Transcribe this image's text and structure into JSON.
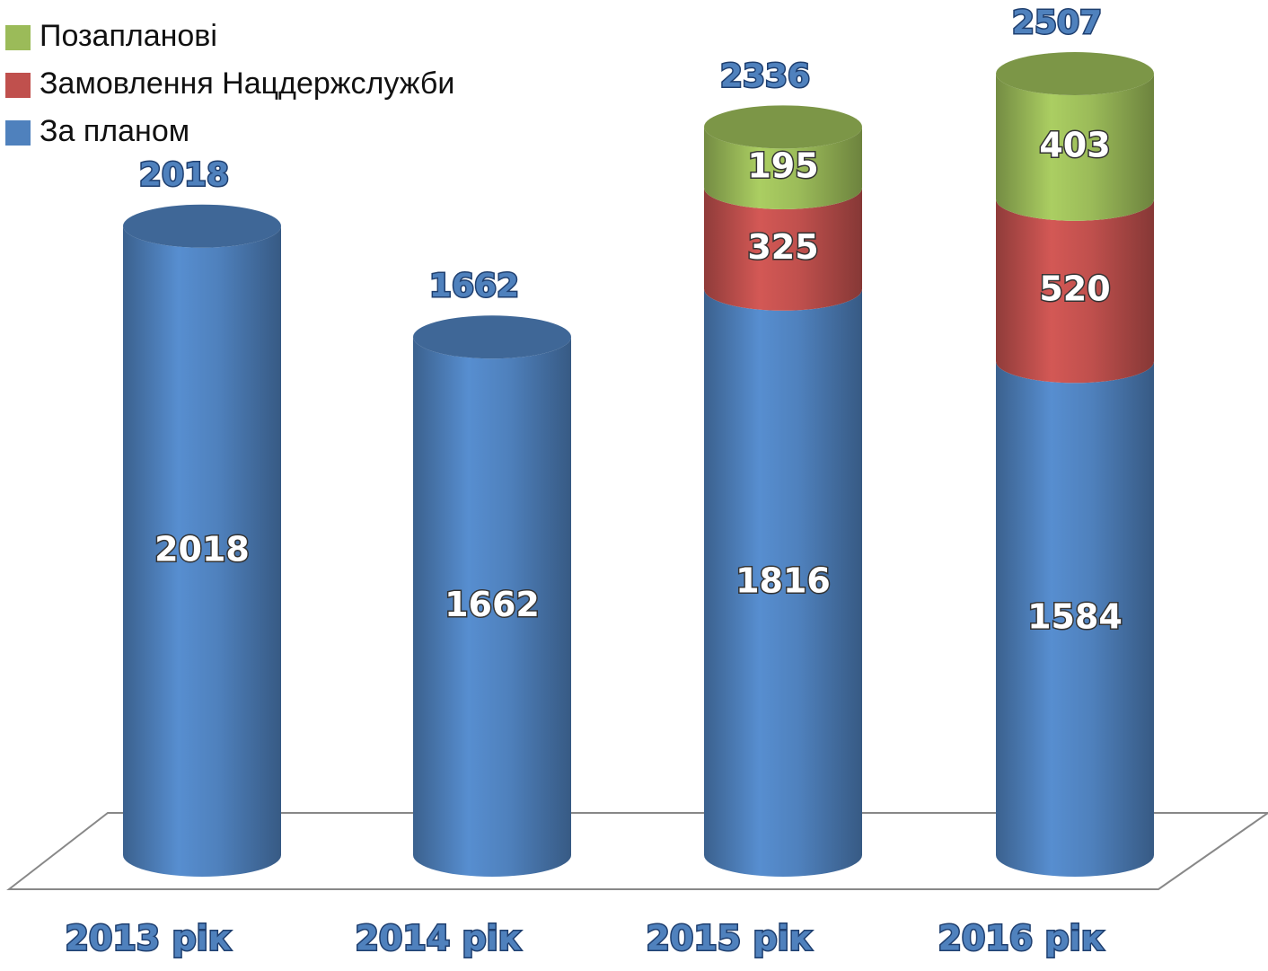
{
  "chart_data": {
    "type": "stacked-cylinder",
    "categories": [
      "2013 рік",
      "2014 рік",
      "2015 рік",
      "2016 рік"
    ],
    "series": [
      {
        "name": "За планом",
        "color": "#4f81bd",
        "values": [
          2018,
          1662,
          1816,
          1584
        ]
      },
      {
        "name": "Замовлення Нацдержслужби",
        "color": "#c0504d",
        "values": [
          null,
          null,
          325,
          520
        ]
      },
      {
        "name": "Позапланові",
        "color": "#9bbb59",
        "values": [
          null,
          null,
          195,
          403
        ]
      }
    ],
    "totals": [
      2018,
      1662,
      2336,
      2507
    ],
    "legend": "top-left"
  }
}
